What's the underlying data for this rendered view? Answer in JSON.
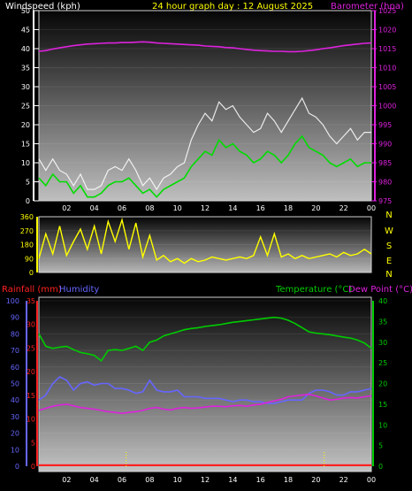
{
  "colors": {
    "wind_avg": "#00dd00",
    "wind_gust": "#ffffff",
    "barometer": "#dd22dd",
    "direction": "#ffff00",
    "rainfall": "#ff2222",
    "humidity": "#6666ff",
    "temperature": "#00cc00",
    "dewpoint": "#dd22dd",
    "left_axis_title": "#ffffff",
    "header_title": "#ffff00"
  },
  "chart_data": [
    {
      "type": "line",
      "panel": "wind-barometer",
      "title": "24 hour graph day : 12 August 2025",
      "ylabel_left": "Windspeed (kph)",
      "ylabel_right": "Barometer (hpa)",
      "ylim_left": [
        0,
        50
      ],
      "ylim_right": [
        975,
        1025
      ],
      "yticks_left": [
        "0",
        "5",
        "10",
        "15",
        "20",
        "25",
        "30",
        "35",
        "40",
        "45",
        "50"
      ],
      "yticks_right": [
        "975",
        "980",
        "985",
        "990",
        "995",
        "1000",
        "1005",
        "1010",
        "1015",
        "1020",
        "1025"
      ],
      "x_hours": [
        0,
        0.5,
        1,
        1.5,
        2,
        2.5,
        3,
        3.5,
        4,
        4.5,
        5,
        5.5,
        6,
        6.5,
        7,
        7.5,
        8,
        8.5,
        9,
        9.5,
        10,
        10.5,
        11,
        11.5,
        12,
        12.5,
        13,
        13.5,
        14,
        14.5,
        15,
        15.5,
        16,
        16.5,
        17,
        17.5,
        18,
        18.5,
        19,
        19.5,
        20,
        20.5,
        21,
        21.5,
        22,
        22.5,
        23,
        23.5,
        24
      ],
      "xtick_labels": [
        "02",
        "04",
        "06",
        "08",
        "10",
        "12",
        "14",
        "16",
        "18",
        "20",
        "22",
        "00"
      ],
      "xtick_hours": [
        2,
        4,
        6,
        8,
        10,
        12,
        14,
        16,
        18,
        20,
        22,
        24
      ],
      "series": [
        {
          "name": "Windspeed",
          "axis": "left",
          "values": [
            6,
            4,
            7,
            5,
            5,
            2,
            4,
            1,
            1,
            2,
            4,
            5,
            5,
            6,
            4,
            2,
            3,
            1,
            3,
            4,
            5,
            6,
            9,
            11,
            13,
            12,
            16,
            14,
            15,
            13,
            12,
            10,
            11,
            13,
            12,
            10,
            12,
            15,
            17,
            14,
            13,
            12,
            10,
            9,
            10,
            11,
            9,
            10,
            10
          ]
        },
        {
          "name": "Gust",
          "axis": "left",
          "values": [
            11,
            8,
            11,
            8,
            7,
            4,
            7,
            3,
            3,
            4,
            8,
            9,
            8,
            11,
            8,
            4,
            6,
            3,
            6,
            7,
            9,
            10,
            16,
            20,
            23,
            21,
            26,
            24,
            25,
            22,
            20,
            18,
            19,
            23,
            21,
            18,
            21,
            24,
            27,
            23,
            22,
            20,
            17,
            15,
            17,
            19,
            16,
            18,
            18
          ]
        },
        {
          "name": "Barometer",
          "axis": "right",
          "values": [
            1014.3,
            1014.5,
            1014.9,
            1015.2,
            1015.5,
            1015.8,
            1016.0,
            1016.2,
            1016.3,
            1016.4,
            1016.5,
            1016.5,
            1016.6,
            1016.6,
            1016.7,
            1016.8,
            1016.7,
            1016.5,
            1016.4,
            1016.3,
            1016.2,
            1016.1,
            1016.0,
            1015.9,
            1015.7,
            1015.6,
            1015.5,
            1015.3,
            1015.2,
            1015.0,
            1014.8,
            1014.6,
            1014.5,
            1014.4,
            1014.3,
            1014.3,
            1014.2,
            1014.2,
            1014.3,
            1014.5,
            1014.7,
            1015.0,
            1015.2,
            1015.5,
            1015.8,
            1016.0,
            1016.2,
            1016.4,
            1016.5
          ]
        }
      ]
    },
    {
      "type": "line",
      "panel": "wind-direction",
      "ylim": [
        0,
        360
      ],
      "yticks": [
        "0",
        "90",
        "180",
        "270",
        "360"
      ],
      "compass_labels": [
        "N",
        "W",
        "S",
        "E",
        "N"
      ],
      "x_hours": [
        0,
        0.5,
        1,
        1.5,
        2,
        2.5,
        3,
        3.5,
        4,
        4.5,
        5,
        5.5,
        6,
        6.5,
        7,
        7.5,
        8,
        8.5,
        9,
        9.5,
        10,
        10.5,
        11,
        11.5,
        12,
        12.5,
        13,
        13.5,
        14,
        14.5,
        15,
        15.5,
        16,
        16.5,
        17,
        17.5,
        18,
        18.5,
        19,
        19.5,
        20,
        20.5,
        21,
        21.5,
        22,
        22.5,
        23,
        23.5,
        24
      ],
      "series": [
        {
          "name": "Direction",
          "values": [
            90,
            250,
            120,
            300,
            110,
            200,
            280,
            150,
            300,
            120,
            330,
            200,
            340,
            150,
            320,
            100,
            240,
            80,
            110,
            70,
            90,
            60,
            90,
            70,
            80,
            100,
            90,
            80,
            90,
            100,
            90,
            110,
            230,
            110,
            250,
            100,
            120,
            90,
            110,
            90,
            100,
            110,
            120,
            100,
            130,
            110,
            120,
            150,
            120
          ]
        }
      ]
    },
    {
      "type": "line",
      "panel": "temperature-humidity-rain",
      "ylabel_left_rain": "Rainfall (mm)",
      "ylabel_left_humidity": "Humidity",
      "ylabel_right_temp": "Temperature (°C)",
      "ylabel_right_dew": "Dew Point (°C)",
      "ylim_humidity": [
        0,
        100
      ],
      "ylim_rain": [
        0,
        35
      ],
      "ylim_temp": [
        0,
        40
      ],
      "yticks_humidity": [
        "0",
        "10",
        "20",
        "30",
        "40",
        "50",
        "60",
        "70",
        "80",
        "90",
        "100"
      ],
      "yticks_rain": [
        "0",
        "5",
        "10",
        "15",
        "20",
        "25",
        "30",
        "35"
      ],
      "yticks_temp": [
        "0",
        "5",
        "10",
        "15",
        "20",
        "25",
        "30",
        "35",
        "40"
      ],
      "xtick_labels": [
        "02",
        "04",
        "06",
        "08",
        "10",
        "12",
        "14",
        "16",
        "18",
        "20",
        "22",
        "00"
      ],
      "xtick_hours": [
        2,
        4,
        6,
        8,
        10,
        12,
        14,
        16,
        18,
        20,
        22,
        24
      ],
      "x_hours": [
        0,
        0.5,
        1,
        1.5,
        2,
        2.5,
        3,
        3.5,
        4,
        4.5,
        5,
        5.5,
        6,
        6.5,
        7,
        7.5,
        8,
        8.5,
        9,
        9.5,
        10,
        10.5,
        11,
        11.5,
        12,
        12.5,
        13,
        13.5,
        14,
        14.5,
        15,
        15.5,
        16,
        16.5,
        17,
        17.5,
        18,
        18.5,
        19,
        19.5,
        20,
        20.5,
        21,
        21.5,
        22,
        22.5,
        23,
        23.5,
        24
      ],
      "series": [
        {
          "name": "Temperature",
          "axis": "right",
          "values": [
            32.0,
            29.0,
            28.5,
            28.8,
            29.0,
            28.2,
            27.5,
            27.2,
            26.8,
            25.5,
            28.0,
            28.2,
            28.0,
            28.5,
            29.0,
            28.0,
            30.0,
            30.5,
            31.5,
            32.0,
            32.5,
            33.0,
            33.3,
            33.5,
            33.8,
            34.0,
            34.2,
            34.5,
            34.8,
            35.0,
            35.2,
            35.4,
            35.6,
            35.8,
            36.0,
            35.8,
            35.3,
            34.5,
            33.5,
            32.5,
            32.2,
            32.0,
            31.8,
            31.5,
            31.2,
            31.0,
            30.5,
            29.8,
            28.5
          ]
        },
        {
          "name": "Humidity",
          "axis": "left",
          "values": [
            40,
            43,
            50,
            54,
            52,
            46,
            50,
            51,
            49,
            50,
            50,
            47,
            47,
            46,
            44,
            45,
            52,
            46,
            45,
            45,
            46,
            42,
            42,
            42,
            41,
            41,
            41,
            40,
            39,
            40,
            40,
            39,
            39,
            38,
            38,
            39,
            40,
            40,
            40,
            44,
            46,
            46,
            45,
            43,
            43,
            45,
            45,
            46,
            47
          ]
        },
        {
          "name": "Dew Point",
          "axis": "right",
          "values": [
            13.5,
            14.0,
            14.5,
            14.8,
            15.0,
            14.6,
            14.2,
            14.0,
            13.8,
            13.5,
            13.2,
            13.0,
            12.8,
            13.0,
            13.2,
            13.5,
            14.0,
            14.2,
            13.8,
            13.6,
            14.0,
            14.2,
            14.0,
            14.1,
            14.3,
            14.5,
            14.5,
            14.4,
            14.6,
            14.7,
            14.5,
            14.8,
            15.0,
            15.4,
            15.8,
            16.2,
            16.8,
            17.0,
            17.2,
            17.4,
            17.0,
            16.5,
            16.0,
            16.2,
            16.5,
            16.6,
            16.5,
            16.8,
            17.0
          ]
        },
        {
          "name": "Rainfall",
          "axis": "left_rain",
          "values": [
            0.2,
            0.2,
            0.2,
            0.2,
            0.2,
            0.2,
            0.2,
            0.2,
            0.2,
            0.2,
            0.2,
            0.2,
            0.2,
            0.2,
            0.2,
            0.2,
            0.2,
            0.2,
            0.2,
            0.2,
            0.2,
            0.2,
            0.2,
            0.2,
            0.2,
            0.2,
            0.2,
            0.2,
            0.2,
            0.2,
            0.2,
            0.2,
            0.2,
            0.2,
            0.2,
            0.2,
            0.2,
            0.2,
            0.2,
            0.2,
            0.2,
            0.2,
            0.2,
            0.2,
            0.2,
            0.2,
            0.2,
            0.2,
            0.2
          ]
        }
      ],
      "markers_hours": [
        6.3,
        20.6
      ]
    }
  ]
}
